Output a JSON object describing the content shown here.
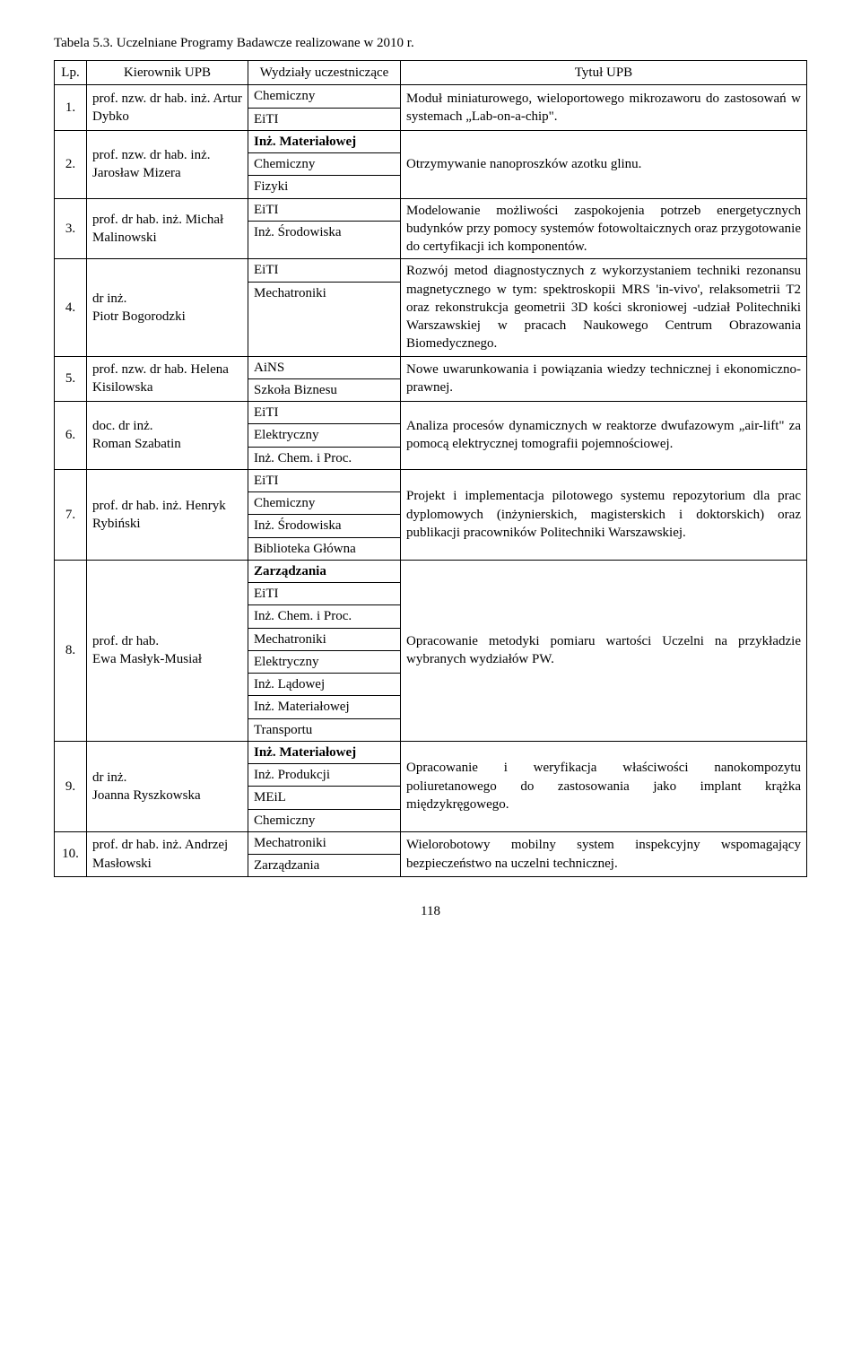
{
  "title": "Tabela 5.3. Uczelniane Programy Badawcze realizowane w 2010 r.",
  "headers": {
    "lp": "Lp.",
    "kier": "Kierownik UPB",
    "wyd": "Wydziały uczestniczące",
    "tytul": "Tytuł UPB"
  },
  "rows": [
    {
      "lp": "1.",
      "kier": "prof. nzw. dr hab. inż. Artur Dybko",
      "wyd": [
        "Chemiczny",
        "EiTI"
      ],
      "tytul": "Moduł miniaturowego, wieloportowego mikrozaworu do zastosowań w systemach „Lab-on-a-chip\"."
    },
    {
      "lp": "2.",
      "kier": "prof. nzw. dr hab. inż. Jarosław Mizera",
      "wyd_bold": [
        "Inż. Materiałowej"
      ],
      "wyd": [
        "Chemiczny",
        "Fizyki"
      ],
      "tytul": "Otrzymywanie nanoproszków azotku glinu."
    },
    {
      "lp": "3.",
      "kier": "prof. dr hab. inż. Michał Malinowski",
      "wyd": [
        "EiTI",
        "Inż. Środowiska"
      ],
      "tytul": "Modelowanie możliwości zaspokojenia potrzeb energetycznych budynków przy pomocy systemów fotowoltaicznych oraz przygotowanie do certyfikacji ich komponentów."
    },
    {
      "lp": "4.",
      "kier": "dr inż.\nPiotr Bogorodzki",
      "wyd": [
        "EiTI",
        "Mechatroniki"
      ],
      "tytul": "Rozwój metod diagnostycznych z wykorzystaniem techniki rezonansu magnetycznego w tym: spektroskopii MRS 'in-vivo', relaksometrii T2 oraz rekonstrukcja geometrii 3D kości skroniowej -udział Politechniki Warszawskiej w pracach Naukowego Centrum Obrazowania Biomedycznego."
    },
    {
      "lp": "5.",
      "kier": "prof. nzw. dr hab. Helena Kisilowska",
      "wyd": [
        "AiNS",
        "Szkoła Biznesu"
      ],
      "tytul": "Nowe uwarunkowania i powiązania wiedzy technicznej i ekonomiczno-prawnej."
    },
    {
      "lp": "6.",
      "kier": "doc. dr inż.\nRoman Szabatin",
      "wyd": [
        "EiTI",
        "Elektryczny",
        "Inż. Chem. i Proc."
      ],
      "tytul": "Analiza procesów dynamicznych w reaktorze dwufazowym „air-lift\" za pomocą elektrycznej tomografii pojemnościowej."
    },
    {
      "lp": "7.",
      "kier": "prof. dr hab. inż. Henryk Rybiński",
      "wyd": [
        "EiTI",
        "Chemiczny",
        "Inż. Środowiska",
        "Biblioteka Główna"
      ],
      "tytul": "Projekt i implementacja pilotowego systemu repozytorium dla prac dyplomowych (inżynierskich, magisterskich i doktorskich) oraz publikacji pracowników Politechniki Warszawskiej."
    },
    {
      "lp": "8.",
      "kier": "prof. dr hab.\nEwa Masłyk-Musiał",
      "wyd_bold": [
        "Zarządzania"
      ],
      "wyd": [
        "EiTI",
        "Inż. Chem. i Proc.",
        "Mechatroniki",
        "Elektryczny",
        "Inż. Lądowej",
        "Inż. Materiałowej",
        "Transportu"
      ],
      "tytul": "Opracowanie metodyki pomiaru wartości Uczelni na przykładzie wybranych wydziałów PW."
    },
    {
      "lp": "9.",
      "kier": "dr inż.\nJoanna Ryszkowska",
      "wyd_bold": [
        "Inż. Materiałowej"
      ],
      "wyd": [
        "Inż. Produkcji",
        "MEiL",
        "Chemiczny"
      ],
      "tytul": "Opracowanie i weryfikacja właściwości nanokompozytu poliuretanowego do zastosowania jako implant krążka międzykręgowego."
    },
    {
      "lp": "10.",
      "kier": "prof. dr hab. inż. Andrzej Masłowski",
      "wyd": [
        "Mechatroniki",
        "Zarządzania"
      ],
      "tytul": "Wielorobotowy mobilny system inspekcyjny wspomagający bezpieczeństwo na uczelni technicznej."
    }
  ],
  "page_number": "118"
}
